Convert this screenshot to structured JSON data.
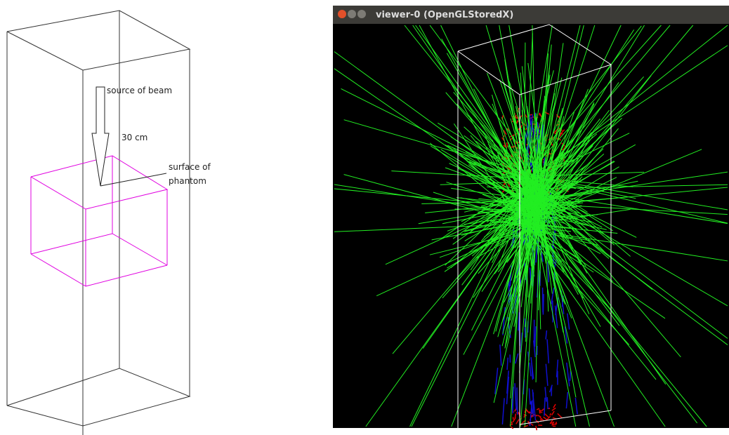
{
  "diagram": {
    "annotations": [
      {
        "lines": [
          "source of beam"
        ]
      },
      {
        "lines": [
          "30 cm"
        ]
      },
      {
        "lines": [
          "surface of",
          "phantom"
        ]
      }
    ]
  },
  "viewer": {
    "title": "viewer-0 (OpenGLStoredX)"
  }
}
